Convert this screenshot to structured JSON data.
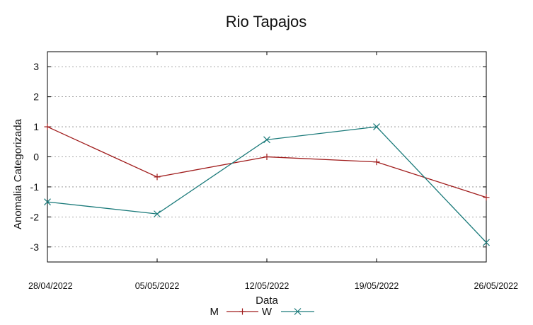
{
  "chart_data": {
    "type": "line",
    "title": "Rio Tapajos",
    "xlabel": "Data",
    "ylabel": "Anomalia Categorizada",
    "categories": [
      "28/04/2022",
      "05/05/2022",
      "12/05/2022",
      "19/05/2022",
      "26/05/2022"
    ],
    "yticks": [
      -3,
      -2,
      -1,
      0,
      1,
      2,
      3
    ],
    "ylim": [
      -3.5,
      3.5
    ],
    "grid": true,
    "legend_position": "bottom-center",
    "series": [
      {
        "name": "M",
        "color": "#a01c1c",
        "marker": "plus",
        "values": [
          1.0,
          -0.67,
          0.0,
          -0.17,
          -1.35
        ]
      },
      {
        "name": "W",
        "color": "#1a7a7a",
        "marker": "cross",
        "values": [
          -1.5,
          -1.9,
          0.57,
          1.0,
          -2.85
        ]
      }
    ]
  }
}
